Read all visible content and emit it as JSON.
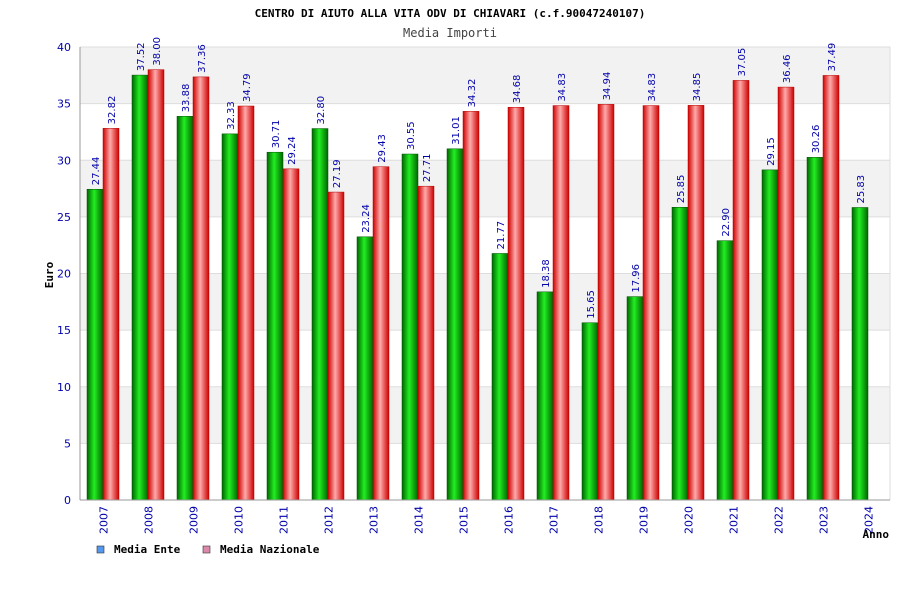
{
  "chart_data": {
    "type": "bar",
    "title": "CENTRO DI AIUTO ALLA VITA ODV DI CHIAVARI (c.f.90047240107)",
    "subtitle": "Media Importi",
    "xlabel": "Anno",
    "ylabel": "Euro",
    "ylim": [
      0,
      40
    ],
    "yticks": [
      0,
      5,
      10,
      15,
      20,
      25,
      30,
      35,
      40
    ],
    "grid": true,
    "legend_position": "bottom-left",
    "categories": [
      "2007",
      "2008",
      "2009",
      "2010",
      "2011",
      "2012",
      "2013",
      "2014",
      "2015",
      "2016",
      "2017",
      "2018",
      "2019",
      "2020",
      "2021",
      "2022",
      "2023",
      "2024"
    ],
    "series": [
      {
        "name": "Media Ente",
        "color": "#00aa00",
        "legend_color": "#5599ee",
        "values": [
          27.44,
          37.52,
          33.88,
          32.33,
          30.71,
          32.8,
          23.24,
          30.55,
          31.01,
          21.77,
          18.38,
          15.65,
          17.96,
          25.85,
          22.9,
          29.15,
          30.26,
          25.83
        ],
        "labels": [
          "27.44",
          "37.52",
          "33.88",
          "32.33",
          "30.71",
          "32.80",
          "23.24",
          "30.55",
          "31.01",
          "21.77",
          "18.38",
          "15.65",
          "17.96",
          "25.85",
          "22.90",
          "29.15",
          "30.26",
          "25.83"
        ]
      },
      {
        "name": "Media Nazionale",
        "color": "#ee1111",
        "legend_color": "#dd88aa",
        "values": [
          32.82,
          38.0,
          37.36,
          34.79,
          29.24,
          27.19,
          29.43,
          27.71,
          34.32,
          34.68,
          34.83,
          34.94,
          34.83,
          34.85,
          37.05,
          36.46,
          37.49,
          null
        ],
        "labels": [
          "32.82",
          "38.00",
          "37.36",
          "34.79",
          "29.24",
          "27.19",
          "29.43",
          "27.71",
          "34.32",
          "34.68",
          "34.83",
          "34.94",
          "34.83",
          "34.85",
          "37.05",
          "36.46",
          "37.49",
          ""
        ]
      }
    ]
  }
}
